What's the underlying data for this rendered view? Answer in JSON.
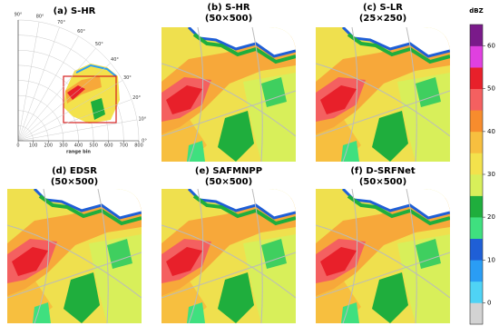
{
  "panels": [
    {
      "title": "(a) S-HR"
    },
    {
      "title": "(b) S-HR",
      "subtitle": "(50×500)"
    },
    {
      "title": "(c) S-LR",
      "subtitle": "(25×250)"
    },
    {
      "title": "(d) EDSR",
      "subtitle": "(50×500)"
    },
    {
      "title": "(e) SAFMNPP",
      "subtitle": "(50×500)"
    },
    {
      "title": "(f) D-SRFNet",
      "subtitle": "(50×500)"
    }
  ],
  "polar": {
    "xlabel": "range bin",
    "xlim": [
      0,
      800
    ],
    "xticks": [
      0,
      100,
      200,
      300,
      400,
      500,
      600,
      700,
      800
    ],
    "angles": [
      {
        "value": 0,
        "label": "0°"
      },
      {
        "value": 10,
        "label": "10°"
      },
      {
        "value": 20,
        "label": "20°"
      },
      {
        "value": 30,
        "label": "30°"
      },
      {
        "value": 40,
        "label": "40°"
      },
      {
        "value": 50,
        "label": "50°"
      },
      {
        "value": 60,
        "label": "60°"
      },
      {
        "value": 70,
        "label": "70°"
      },
      {
        "value": 80,
        "label": "80°"
      },
      {
        "value": 90,
        "label": "90°"
      }
    ]
  },
  "colorbar": {
    "label": "dBZ",
    "ylim": [
      -5,
      65
    ],
    "yticks": [
      0,
      10,
      20,
      30,
      40,
      50,
      60
    ],
    "colors": [
      "#d3d3d3",
      "#4fd3f5",
      "#2a9df4",
      "#1f5fd6",
      "#3fe07f",
      "#1fae3d",
      "#d8ef5a",
      "#f3e24c",
      "#f7bf3f",
      "#f78c2d",
      "#f46060",
      "#e8202a",
      "#e040e0",
      "#7a1a8a"
    ]
  }
}
